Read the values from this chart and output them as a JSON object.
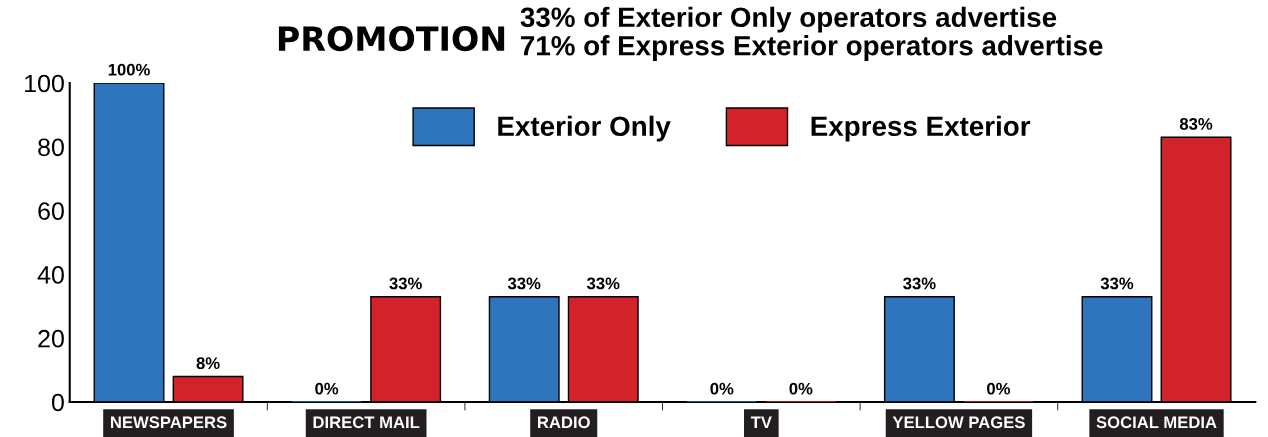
{
  "chart_data": {
    "type": "bar",
    "title": "PROMOTION",
    "annotations": [
      "33% of Exterior Only operators advertise",
      "71% of Express Exterior operators advertise"
    ],
    "categories": [
      "NEWSPAPERS",
      "DIRECT MAIL",
      "RADIO",
      "TV",
      "YELLOW PAGES",
      "SOCIAL MEDIA"
    ],
    "series": [
      {
        "name": "Exterior Only",
        "color": "#2f75bd",
        "values": [
          100,
          0,
          33,
          0,
          33,
          33
        ],
        "value_labels": [
          "100%",
          "0%",
          "33%",
          "0%",
          "33%",
          "33%"
        ]
      },
      {
        "name": "Express Exterior",
        "color": "#d2232a",
        "values": [
          8,
          33,
          33,
          0,
          0,
          83
        ],
        "value_labels": [
          "8%",
          "33%",
          "33%",
          "0%",
          "0%",
          "83%"
        ]
      }
    ],
    "ylim": [
      0,
      100
    ],
    "yticks": [
      0,
      20,
      40,
      60,
      80,
      100
    ],
    "grid": false,
    "legend": "top"
  }
}
